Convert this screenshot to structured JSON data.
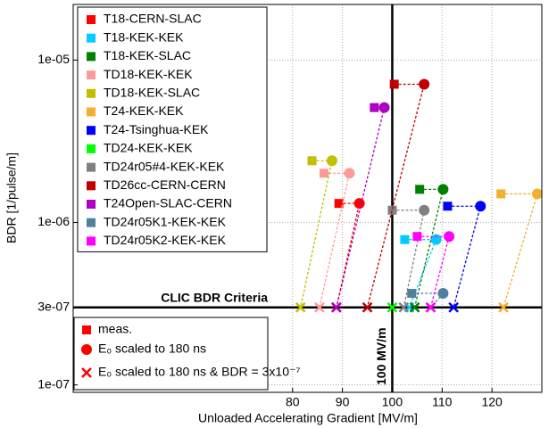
{
  "chart_data": {
    "type": "scatter",
    "xlabel": "Unloaded Accelerating Gradient [MV/m]",
    "ylabel": "BDR [1/pulse/m]",
    "xlim": [
      36,
      130
    ],
    "ylim": [
      9e-08,
      2.2e-05
    ],
    "ylog": true,
    "grid": true,
    "xticks": [
      80,
      90,
      100,
      110,
      120
    ],
    "yticks": [
      {
        "value": 1e-07,
        "label": "1e-07"
      },
      {
        "value": 3e-07,
        "label": "3e-07"
      },
      {
        "value": 1e-06,
        "label": "1e-06"
      },
      {
        "value": 1e-05,
        "label": "1e-05"
      }
    ],
    "reference_lines": [
      {
        "y": 3e-07,
        "label": "CLIC BDR Criteria"
      },
      {
        "x": 100,
        "label": "100 MV/m"
      }
    ],
    "marker_legend": [
      {
        "label": "meas.",
        "marker": "square"
      },
      {
        "label": "E₀ scaled to 180 ns",
        "marker": "circle"
      },
      {
        "label": "E₀ scaled to 180 ns & BDR = 3x10⁻⁷",
        "marker": "x"
      }
    ],
    "series": [
      {
        "name": "T18-CERN-SLAC",
        "color": "#ff0000",
        "x": [
          89.3,
          93.4,
          88.8
        ],
        "values": [
          1.31e-06,
          1.31e-06,
          3e-07
        ]
      },
      {
        "name": "T18-KEK-KEK",
        "color": "#00ccff",
        "x": [
          102.5,
          108.8,
          103.4
        ],
        "values": [
          7.85e-07,
          7.85e-07,
          3e-07
        ]
      },
      {
        "name": "T18-KEK-SLAC",
        "color": "#008000",
        "x": [
          105.5,
          110.2,
          104.5
        ],
        "values": [
          1.6e-06,
          1.6e-06,
          3e-07
        ]
      },
      {
        "name": "TD18-KEK-KEK",
        "color": "#ff9999",
        "x": [
          86.3,
          91.4,
          85.4
        ],
        "values": [
          2.01e-06,
          2.01e-06,
          3e-07
        ]
      },
      {
        "name": "TD18-KEK-SLAC",
        "color": "#c0c000",
        "x": [
          83.9,
          87.9,
          81.6
        ],
        "values": [
          2.4e-06,
          2.4e-06,
          3e-07
        ]
      },
      {
        "name": "T24-KEK-KEK",
        "color": "#f0b030",
        "x": [
          121.8,
          129.1,
          122.3
        ],
        "values": [
          1.5e-06,
          1.5e-06,
          3e-07
        ]
      },
      {
        "name": "T24-Tsinghua-KEK",
        "color": "#0000ff",
        "x": [
          111.1,
          117.7,
          112.3
        ],
        "values": [
          1.26e-06,
          1.26e-06,
          3e-07
        ]
      },
      {
        "name": "TD24-KEK-KEK",
        "color": "#00ff00",
        "x": [
          null,
          null,
          100
        ],
        "values": [
          null,
          null,
          3e-07
        ]
      },
      {
        "name": "TD24r05#4-KEK-KEK",
        "color": "#808080",
        "x": [
          100,
          106.4,
          102.3
        ],
        "values": [
          1.19e-06,
          1.19e-06,
          3e-07
        ]
      },
      {
        "name": "TD26cc-CERN-CERN",
        "color": "#c00000",
        "x": [
          100.4,
          106.4,
          95.0
        ],
        "values": [
          7.1e-06,
          7.1e-06,
          3e-07
        ]
      },
      {
        "name": "T24Open-SLAC-CERN",
        "color": "#b000c0",
        "x": [
          96.4,
          98.4,
          88.8
        ],
        "values": [
          5.1e-06,
          5.1e-06,
          3e-07
        ]
      },
      {
        "name": "TD24r05K1-KEK-KEK",
        "color": "#5080a0",
        "x": [
          103.9,
          110.2,
          107.7
        ],
        "values": [
          3.66e-07,
          3.66e-07,
          3e-07
        ]
      },
      {
        "name": "TD24r05K2-KEK-KEK",
        "color": "#ff00ff",
        "x": [
          105.0,
          111.4,
          107.7
        ],
        "values": [
          8.2e-07,
          8.2e-07,
          3e-07
        ]
      }
    ]
  }
}
